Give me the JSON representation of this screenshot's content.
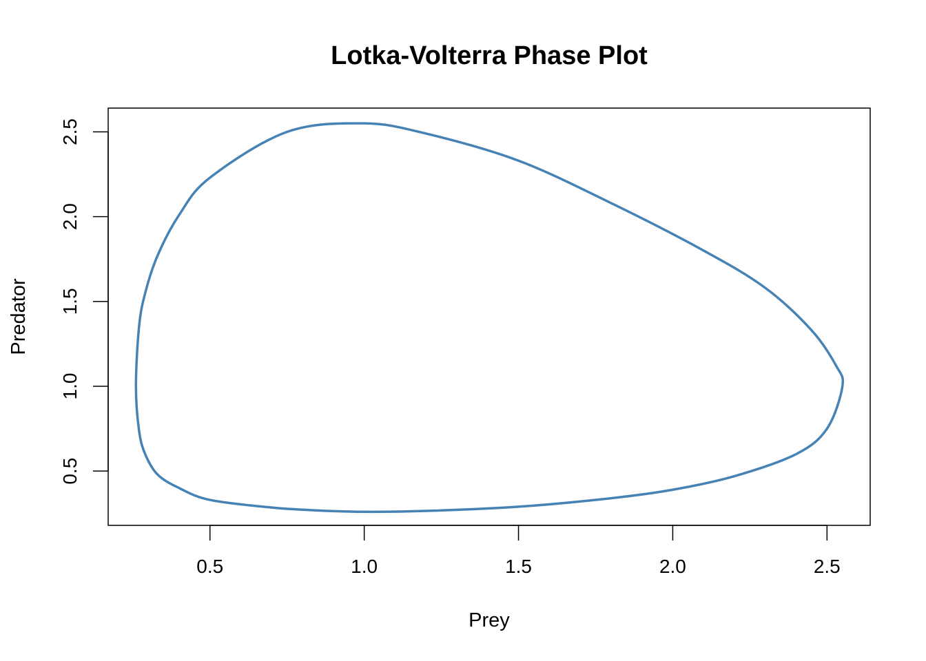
{
  "chart_data": {
    "type": "line",
    "title": "Lotka-Volterra Phase Plot",
    "xlabel": "Prey",
    "ylabel": "Predator",
    "xlim": [
      0.17,
      2.64
    ],
    "ylim": [
      0.18,
      2.64
    ],
    "xticks": [
      "0.5",
      "1.0",
      "1.5",
      "2.0",
      "2.5"
    ],
    "yticks": [
      "0.5",
      "1.0",
      "1.5",
      "2.0",
      "2.5"
    ],
    "grid": false,
    "series": [
      {
        "color": "#4682B4",
        "closed": true,
        "x": [
          1.0,
          1.2,
          1.5,
          1.8,
          2.0,
          2.2,
          2.4,
          2.5,
          2.55,
          2.53,
          2.45,
          2.3,
          2.1,
          1.8,
          1.5,
          1.2,
          1.0,
          0.75,
          0.5,
          0.4,
          0.33,
          0.29,
          0.27,
          0.26,
          0.27,
          0.29,
          0.33,
          0.4,
          0.5,
          0.7,
          0.85,
          1.0
        ],
        "y": [
          0.26,
          0.265,
          0.29,
          0.34,
          0.39,
          0.47,
          0.6,
          0.75,
          1.0,
          1.12,
          1.33,
          1.58,
          1.8,
          2.08,
          2.33,
          2.49,
          2.55,
          2.5,
          2.23,
          2.01,
          1.77,
          1.55,
          1.35,
          1.0,
          0.74,
          0.6,
          0.48,
          0.4,
          0.33,
          0.285,
          0.268,
          0.26
        ]
      }
    ]
  }
}
